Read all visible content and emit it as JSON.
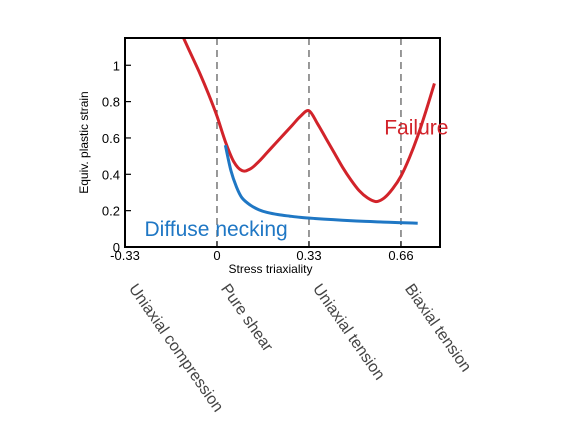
{
  "chart_data": {
    "type": "line",
    "xlabel": "Stress triaxiality",
    "ylabel": "Equiv. plastic strain",
    "xlim": [
      -0.33,
      0.8
    ],
    "ylim": [
      0,
      1.15
    ],
    "x_ticks": [
      {
        "value": -0.33,
        "label": "-0.33"
      },
      {
        "value": 0,
        "label": "0"
      },
      {
        "value": 0.33,
        "label": "0.33"
      },
      {
        "value": 0.66,
        "label": "0.66"
      }
    ],
    "y_ticks": [
      {
        "value": 0,
        "label": "0"
      },
      {
        "value": 0.2,
        "label": "0.2"
      },
      {
        "value": 0.4,
        "label": "0.4"
      },
      {
        "value": 0.6,
        "label": "0.6"
      },
      {
        "value": 0.8,
        "label": "0.8"
      },
      {
        "value": 1,
        "label": "1"
      }
    ],
    "reference_lines_x": [
      0,
      0.33,
      0.66
    ],
    "grid": false,
    "series": [
      {
        "name": "Failure",
        "color": "#d2232a",
        "x": [
          -0.12,
          -0.09,
          -0.06,
          -0.03,
          0.0,
          0.03,
          0.06,
          0.09,
          0.12,
          0.15,
          0.18,
          0.21,
          0.24,
          0.27,
          0.3,
          0.33,
          0.36,
          0.39,
          0.42,
          0.45,
          0.48,
          0.51,
          0.54,
          0.57,
          0.6,
          0.63,
          0.66,
          0.69,
          0.72,
          0.75,
          0.78
        ],
        "y": [
          1.15,
          1.05,
          0.95,
          0.84,
          0.72,
          0.58,
          0.47,
          0.42,
          0.43,
          0.47,
          0.52,
          0.57,
          0.62,
          0.67,
          0.72,
          0.75,
          0.68,
          0.6,
          0.52,
          0.44,
          0.37,
          0.31,
          0.27,
          0.25,
          0.27,
          0.32,
          0.39,
          0.49,
          0.61,
          0.75,
          0.9
        ]
      },
      {
        "name": "Diffuse necking",
        "color": "#1f77c4",
        "x": [
          0.03,
          0.05,
          0.07,
          0.09,
          0.12,
          0.15,
          0.18,
          0.22,
          0.26,
          0.3,
          0.35,
          0.4,
          0.45,
          0.5,
          0.55,
          0.6,
          0.65,
          0.7,
          0.72
        ],
        "y": [
          0.56,
          0.42,
          0.33,
          0.27,
          0.23,
          0.205,
          0.19,
          0.178,
          0.17,
          0.163,
          0.157,
          0.152,
          0.147,
          0.143,
          0.14,
          0.137,
          0.134,
          0.132,
          0.131
        ]
      }
    ],
    "series_labels": [
      {
        "text": "Failure",
        "x": 0.6,
        "y": 0.62
      },
      {
        "text": "Diffuse necking",
        "x": -0.26,
        "y": 0.06
      }
    ],
    "regime_labels": [
      {
        "text": "Uniaxial compression",
        "x": -0.33
      },
      {
        "text": "Pure shear",
        "x": 0
      },
      {
        "text": "Uniaxial tension",
        "x": 0.33
      },
      {
        "text": "Biaxial tension",
        "x": 0.66
      }
    ]
  }
}
